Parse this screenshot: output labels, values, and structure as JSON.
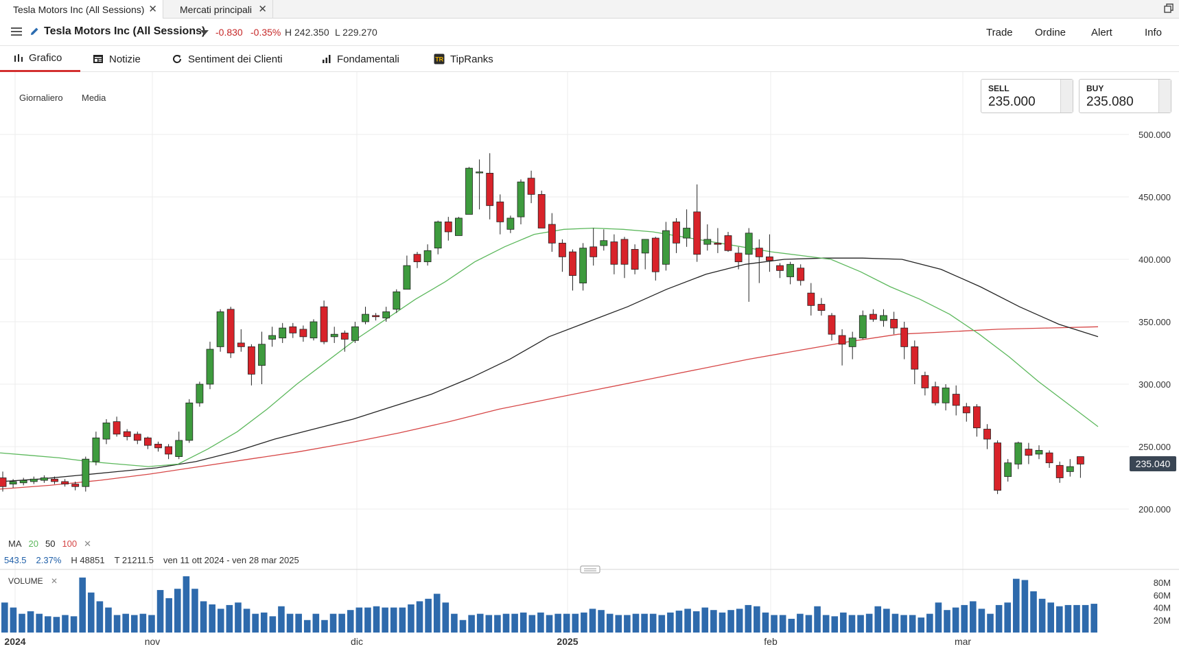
{
  "tabs": [
    {
      "label": "Tesla Motors Inc (All Sessions)",
      "active": true
    },
    {
      "label": "Mercati principali",
      "active": false
    }
  ],
  "header": {
    "title": "Tesla Motors Inc (All Sessions)",
    "change": "-0.830",
    "change_pct": "-0.35%",
    "high": "H 242.350",
    "low": "L 229.270",
    "nav": [
      "Trade",
      "Ordine",
      "Alert",
      "Info"
    ]
  },
  "subnav": [
    "Grafico",
    "Notizie",
    "Sentiment dei Clienti",
    "Fondamentali",
    "TipRanks"
  ],
  "chart_options": {
    "period": "Giornaliero",
    "type": "Media"
  },
  "sell": {
    "label": "SELL",
    "value": "235.000"
  },
  "buy": {
    "label": "BUY",
    "value": "235.080"
  },
  "current_price_label": "235.040",
  "legend": {
    "ma": "MA",
    "ma20": "20",
    "ma50": "50",
    "ma100": "100",
    "close": "✕"
  },
  "stats": {
    "v1": "543.5",
    "v2": "2.37%",
    "h": "H 48851",
    "t": "T 21211.5",
    "range": "ven 11 ott 2024 - ven 28 mar 2025"
  },
  "volume": {
    "label": "VOLUME",
    "close": "✕"
  },
  "colors": {
    "up": "#3e9b3e",
    "down": "#d8232a",
    "ma20": "#5cb85c",
    "ma50": "#222222",
    "ma100": "#d64545",
    "volume": "#2e6aac",
    "accent": "#d32f2f"
  },
  "chart_data": {
    "type": "candlestick",
    "y_ticks": [
      "500.000",
      "450.000",
      "400.000",
      "350.000",
      "300.000",
      "250.000",
      "200.000"
    ],
    "ylim": [
      160,
      520
    ],
    "x_ticks": [
      "2024",
      "nov",
      "dic",
      "2025",
      "feb",
      "mar"
    ],
    "volume_ticks": [
      "80M",
      "60M",
      "40M",
      "20M"
    ],
    "volume_ylim": [
      0,
      90
    ],
    "candles": [
      [
        225,
        218,
        230,
        214
      ],
      [
        220,
        222,
        224,
        217
      ],
      [
        221,
        223,
        225,
        219
      ],
      [
        222,
        224,
        226,
        220
      ],
      [
        223,
        225,
        227,
        221
      ],
      [
        224,
        222,
        226,
        220
      ],
      [
        222,
        220,
        224,
        218
      ],
      [
        220,
        218,
        222,
        215
      ],
      [
        218,
        240,
        242,
        214
      ],
      [
        238,
        257,
        262,
        235
      ],
      [
        256,
        269,
        272,
        252
      ],
      [
        270,
        260,
        274,
        258
      ],
      [
        262,
        258,
        264,
        255
      ],
      [
        260,
        255,
        262,
        252
      ],
      [
        257,
        251,
        258,
        248
      ],
      [
        252,
        249,
        254,
        246
      ],
      [
        250,
        244,
        252,
        240
      ],
      [
        242,
        255,
        262,
        240
      ],
      [
        255,
        285,
        288,
        253
      ],
      [
        285,
        300,
        302,
        282
      ],
      [
        300,
        328,
        334,
        296
      ],
      [
        330,
        358,
        360,
        326
      ],
      [
        360,
        325,
        362,
        321
      ],
      [
        333,
        330,
        344,
        326
      ],
      [
        330,
        308,
        332,
        299
      ],
      [
        315,
        332,
        342,
        300
      ],
      [
        336,
        339,
        346,
        330
      ],
      [
        337,
        345,
        349,
        333
      ],
      [
        346,
        341,
        349,
        337
      ],
      [
        344,
        338,
        347,
        334
      ],
      [
        337,
        350,
        352,
        335
      ],
      [
        362,
        334,
        367,
        332
      ],
      [
        338,
        340,
        346,
        333
      ],
      [
        341,
        336,
        343,
        326
      ],
      [
        335,
        346,
        350,
        333
      ],
      [
        350,
        356,
        362,
        348
      ],
      [
        355,
        354,
        357,
        351
      ],
      [
        353,
        358,
        362,
        350
      ],
      [
        360,
        374,
        376,
        357
      ],
      [
        376,
        395,
        403,
        392
      ],
      [
        404,
        398,
        406,
        393
      ],
      [
        398,
        407,
        412,
        395
      ],
      [
        409,
        430,
        431,
        404
      ],
      [
        430,
        422,
        434,
        415
      ],
      [
        419,
        433,
        434,
        419
      ],
      [
        436,
        473,
        474,
        436
      ],
      [
        470,
        470,
        480,
        440
      ],
      [
        469,
        443,
        485,
        432
      ],
      [
        446,
        430,
        452,
        420
      ],
      [
        424,
        433,
        435,
        421
      ],
      [
        434,
        462,
        464,
        428
      ],
      [
        465,
        452,
        471,
        445
      ],
      [
        452,
        425,
        455,
        430
      ],
      [
        428,
        413,
        437,
        406
      ],
      [
        413,
        402,
        416,
        390
      ],
      [
        406,
        387,
        408,
        375
      ],
      [
        381,
        409,
        413,
        375
      ],
      [
        410,
        402,
        425,
        395
      ],
      [
        411,
        415,
        424,
        407
      ],
      [
        414,
        396,
        420,
        388
      ],
      [
        416,
        396,
        418,
        385
      ],
      [
        408,
        392,
        412,
        388
      ],
      [
        405,
        416,
        416,
        392
      ],
      [
        417,
        390,
        418,
        383
      ],
      [
        396,
        423,
        430,
        391
      ],
      [
        430,
        413,
        433,
        405
      ],
      [
        417,
        425,
        440,
        410
      ],
      [
        438,
        404,
        460,
        398
      ],
      [
        412,
        416,
        428,
        407
      ],
      [
        413,
        412,
        425,
        405
      ],
      [
        419,
        407,
        422,
        406
      ],
      [
        405,
        398,
        410,
        392
      ],
      [
        404,
        421,
        425,
        366
      ],
      [
        409,
        402,
        416,
        381
      ],
      [
        402,
        399,
        420,
        390
      ],
      [
        395,
        391,
        397,
        385
      ],
      [
        386,
        396,
        398,
        380
      ],
      [
        393,
        383,
        396,
        379
      ],
      [
        373,
        363,
        381,
        355
      ],
      [
        364,
        359,
        369,
        355
      ],
      [
        355,
        340,
        357,
        335
      ],
      [
        339,
        332,
        344,
        315
      ],
      [
        330,
        337,
        342,
        320
      ],
      [
        337,
        355,
        359,
        336
      ],
      [
        356,
        352,
        360,
        350
      ],
      [
        351,
        355,
        360,
        346
      ],
      [
        352,
        345,
        358,
        340
      ],
      [
        345,
        330,
        350,
        320
      ],
      [
        330,
        312,
        335,
        300
      ],
      [
        307,
        297,
        310,
        291
      ],
      [
        298,
        285,
        302,
        283
      ],
      [
        285,
        297,
        300,
        279
      ],
      [
        292,
        283,
        299,
        275
      ],
      [
        282,
        277,
        285,
        270
      ],
      [
        282,
        265,
        284,
        258
      ],
      [
        264,
        256,
        268,
        248
      ],
      [
        253,
        215,
        255,
        212
      ],
      [
        226,
        237,
        240,
        222
      ],
      [
        236,
        253,
        254,
        232
      ],
      [
        248,
        243,
        253,
        236
      ],
      [
        244,
        247,
        251,
        240
      ],
      [
        245,
        237,
        247,
        233
      ],
      [
        235,
        225,
        238,
        221
      ],
      [
        230,
        234,
        240,
        226
      ],
      [
        242,
        236,
        241,
        225
      ]
    ],
    "ma20": [
      224,
      225,
      226,
      227,
      228,
      229,
      231,
      233,
      234,
      237,
      241,
      245,
      249,
      254,
      259,
      264,
      270,
      276,
      283,
      289,
      296,
      303,
      310,
      318,
      325,
      333,
      340,
      346,
      352,
      358,
      364,
      369,
      374,
      380,
      386,
      392,
      398,
      404,
      410,
      415,
      418,
      421,
      425,
      422,
      418,
      415,
      410,
      404,
      400,
      395,
      390,
      385,
      380,
      373,
      366,
      355,
      345,
      332,
      318,
      304,
      292,
      280,
      270,
      264
    ],
    "ma50": [
      222,
      223,
      224,
      226,
      228,
      230,
      233,
      236,
      240,
      244,
      249,
      254,
      260,
      266,
      273,
      280,
      288,
      296,
      305,
      315,
      325,
      335,
      344,
      354,
      364,
      374,
      383,
      391,
      398,
      402,
      404,
      406,
      406,
      406,
      405,
      404,
      402,
      399,
      395,
      390,
      385,
      379,
      372,
      364,
      356,
      348,
      342,
      338
    ],
    "ma100": [
      216,
      218,
      221,
      224,
      227,
      231,
      235,
      239,
      243,
      247,
      251,
      256,
      261,
      266,
      271,
      276,
      282,
      288,
      294,
      300,
      306,
      312,
      318,
      324,
      330,
      335,
      340,
      343,
      345,
      346,
      347,
      347
    ],
    "volume": [
      48,
      40,
      30,
      34,
      30,
      26,
      25,
      28,
      26,
      88,
      64,
      50,
      40,
      28,
      30,
      28,
      30,
      28,
      68,
      55,
      70,
      90,
      70,
      50,
      45,
      38,
      44,
      48,
      38,
      30,
      32,
      26,
      42,
      30,
      30,
      20,
      30,
      20,
      30,
      30,
      36,
      40,
      40,
      42,
      40,
      40,
      40,
      45,
      50,
      54,
      62,
      48,
      30,
      20,
      28,
      30,
      28,
      28,
      30,
      30,
      32,
      28,
      32,
      28,
      30,
      30,
      30,
      32,
      38,
      36,
      30,
      28,
      28,
      30,
      30,
      30,
      28,
      32,
      35,
      38,
      34,
      40,
      36,
      32,
      36,
      38,
      44,
      42,
      32,
      28,
      28,
      22,
      30,
      28,
      42,
      28,
      26,
      32,
      28,
      28,
      30,
      42,
      38,
      30,
      28,
      28,
      24,
      30,
      48,
      36,
      40,
      44,
      50,
      38,
      30,
      44,
      48,
      86,
      84,
      66,
      54,
      48,
      42,
      44,
      44,
      44,
      46
    ]
  }
}
